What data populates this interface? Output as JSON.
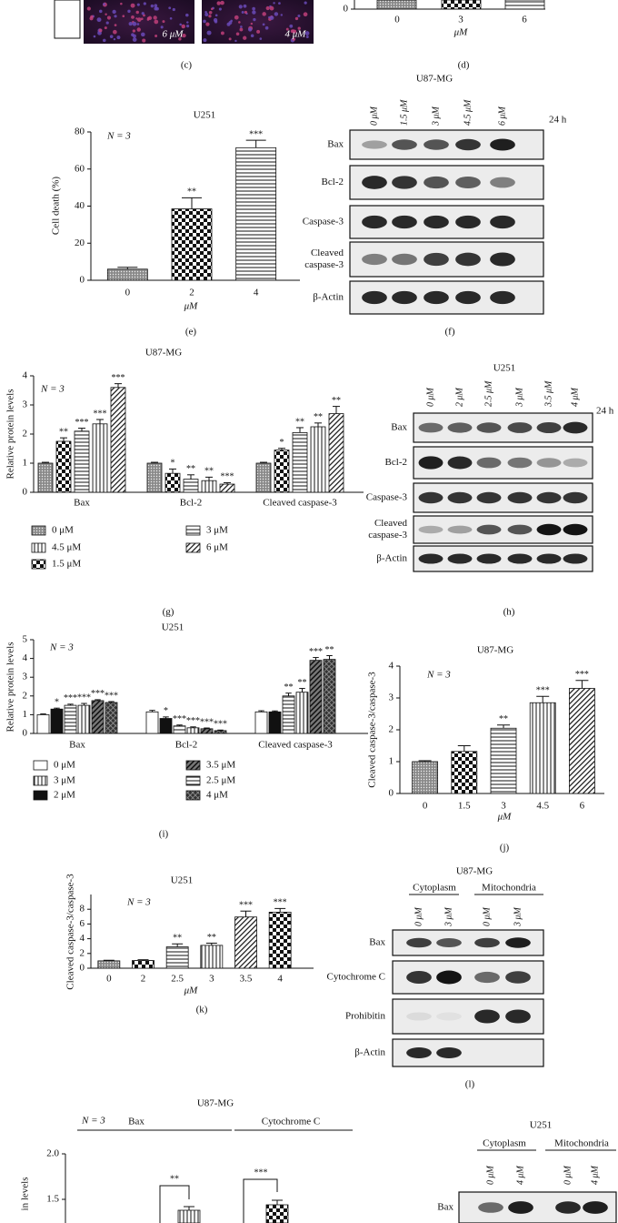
{
  "panel_c": {
    "type": "image",
    "image_labels": [
      "6 μM",
      "4 μM"
    ],
    "label": "(c)"
  },
  "panel_d": {
    "type": "bar",
    "categories": [
      "0",
      "3",
      "6"
    ],
    "xlabel": "μM",
    "yticks": [
      0
    ],
    "label": "(d)"
  },
  "panel_e": {
    "type": "bar",
    "title": "U251",
    "annotation": "N = 3",
    "ylabel": "Cell death (%)",
    "xlabel": "μM",
    "categories": [
      "0",
      "2",
      "4"
    ],
    "values": [
      6,
      38.5,
      71.5
    ],
    "errors": [
      1,
      6,
      4
    ],
    "stars": [
      null,
      "**",
      "***"
    ],
    "fills": [
      "dots",
      "checker",
      "hlines"
    ],
    "ylim": [
      0,
      80
    ],
    "yticks": [
      0,
      20,
      40,
      60,
      80
    ],
    "label": "(e)"
  },
  "panel_f": {
    "type": "blot",
    "title": "U87-MG",
    "lanes": [
      "0 μM",
      "1.5 μM",
      "3 μM",
      "4.5 μM",
      "6 μM"
    ],
    "time": "24 h",
    "rows": [
      [
        "Bax"
      ],
      [
        "Bcl-2"
      ],
      [
        "Caspase-3"
      ],
      [
        "Cleaved",
        "caspase-3"
      ],
      [
        "β-Actin"
      ]
    ],
    "label": "(f)"
  },
  "panel_g": {
    "type": "bar",
    "title": "U87-MG",
    "annotation": "N = 3",
    "ylabel": "Relative protein levels",
    "categories": [
      "Bax",
      "Bcl-2",
      "Cleaved caspase-3"
    ],
    "ylim": [
      0,
      4
    ],
    "yticks": [
      0,
      1,
      2,
      3,
      4
    ],
    "series": [
      {
        "name": "0 μM",
        "fill": "dots",
        "values": [
          1,
          1,
          1
        ],
        "errors": [
          0.03,
          0.03,
          0.03
        ],
        "stars": [
          null,
          null,
          null
        ]
      },
      {
        "name": "1.5 μM",
        "fill": "checker",
        "values": [
          1.75,
          0.65,
          1.45
        ],
        "errors": [
          0.12,
          0.15,
          0.06
        ],
        "stars": [
          "**",
          "*",
          "*"
        ]
      },
      {
        "name": "3 μM",
        "fill": "hlines",
        "values": [
          2.1,
          0.45,
          2.05
        ],
        "errors": [
          0.1,
          0.15,
          0.17
        ],
        "stars": [
          "***",
          "**",
          "**"
        ]
      },
      {
        "name": "4.5 μM",
        "fill": "vlines",
        "values": [
          2.35,
          0.4,
          2.25
        ],
        "errors": [
          0.15,
          0.12,
          0.13
        ],
        "stars": [
          "***",
          "**",
          "**"
        ]
      },
      {
        "name": "6 μM",
        "fill": "diag",
        "values": [
          3.6,
          0.28,
          2.7
        ],
        "errors": [
          0.13,
          0.05,
          0.25
        ],
        "stars": [
          "***",
          "***",
          "**"
        ]
      }
    ],
    "label": "(g)"
  },
  "panel_h": {
    "type": "blot",
    "title": "U251",
    "lanes": [
      "0 μM",
      "2 μM",
      "2.5 μM",
      "3 μM",
      "3.5 μM",
      "4 μM"
    ],
    "time": "24 h",
    "rows": [
      [
        "Bax"
      ],
      [
        "Bcl-2"
      ],
      [
        "Caspase-3"
      ],
      [
        "Cleaved",
        "caspase-3"
      ],
      [
        "β-Actin"
      ]
    ],
    "label": "(h)"
  },
  "panel_i": {
    "type": "bar",
    "title": "U251",
    "annotation": "N = 3",
    "ylabel": "Relative protein levels",
    "categories": [
      "Bax",
      "Bcl-2",
      "Cleaved caspase-3"
    ],
    "ylim": [
      0,
      5
    ],
    "yticks": [
      0,
      1,
      2,
      3,
      4,
      5
    ],
    "series": [
      {
        "name": "0 μM",
        "fill": "white",
        "values": [
          1,
          1.15,
          1.15
        ],
        "errors": [
          0.04,
          0.08,
          0.06
        ],
        "stars": [
          null,
          null,
          null
        ]
      },
      {
        "name": "2 μM",
        "fill": "black",
        "values": [
          1.3,
          0.8,
          1.15
        ],
        "errors": [
          0.05,
          0.08,
          0.05
        ],
        "stars": [
          "*",
          "*",
          null
        ]
      },
      {
        "name": "2.5 μM",
        "fill": "hlines",
        "values": [
          1.5,
          0.4,
          2.0
        ],
        "errors": [
          0.06,
          0.05,
          0.15
        ],
        "stars": [
          "***",
          "***",
          "**"
        ]
      },
      {
        "name": "3 μM",
        "fill": "vlines",
        "values": [
          1.5,
          0.3,
          2.2
        ],
        "errors": [
          0.1,
          0.05,
          0.2
        ],
        "stars": [
          "***",
          "***",
          "**"
        ]
      },
      {
        "name": "3.5 μM",
        "fill": "diagdark",
        "values": [
          1.75,
          0.25,
          3.9
        ],
        "errors": [
          0.05,
          0.04,
          0.15
        ],
        "stars": [
          "***",
          "***",
          "***"
        ]
      },
      {
        "name": "4 μM",
        "fill": "cross",
        "values": [
          1.65,
          0.15,
          3.95
        ],
        "errors": [
          0.05,
          0.03,
          0.2
        ],
        "stars": [
          "***",
          "***",
          "**"
        ]
      }
    ],
    "label": "(i)"
  },
  "panel_j": {
    "type": "bar",
    "title": "U87-MG",
    "annotation": "N = 3",
    "ylabel": "Cleaved caspase-3/caspase-3",
    "xlabel": "μM",
    "categories": [
      "0",
      "1.5",
      "3",
      "4.5",
      "6"
    ],
    "values": [
      1,
      1.32,
      2.05,
      2.85,
      3.3
    ],
    "errors": [
      0.03,
      0.18,
      0.1,
      0.2,
      0.25
    ],
    "stars": [
      null,
      null,
      "**",
      "***",
      "***"
    ],
    "fills": [
      "dots",
      "checker",
      "hlines",
      "vlines",
      "diag"
    ],
    "ylim": [
      0,
      4
    ],
    "yticks": [
      0,
      1,
      2,
      3,
      4
    ],
    "label": "(j)"
  },
  "panel_k": {
    "type": "bar",
    "title": "U251",
    "annotation": "N = 3",
    "ylabel": "Cleaved caspase-3/caspase-3",
    "xlabel": "μM",
    "categories": [
      "0",
      "2",
      "2.5",
      "3",
      "3.5",
      "4"
    ],
    "values": [
      1,
      1.05,
      2.9,
      3.1,
      6.95,
      7.6
    ],
    "errors": [
      0.08,
      0.1,
      0.4,
      0.3,
      0.8,
      0.5
    ],
    "stars": [
      null,
      null,
      "**",
      "**",
      "***",
      "***"
    ],
    "fills": [
      "dots",
      "checker",
      "hlines",
      "vlines",
      "diag",
      "checker"
    ],
    "ylim": [
      0,
      10
    ],
    "yticks": [
      0,
      2,
      4,
      6,
      8
    ],
    "label": "(k)"
  },
  "panel_l": {
    "type": "blot",
    "title": "U87-MG",
    "headers": [
      "Cytoplasm",
      "Mitochondria"
    ],
    "lanes": [
      "0 μM",
      "3 μM",
      "0 μM",
      "3 μM"
    ],
    "rows": [
      [
        "Bax"
      ],
      [
        "Cytochrome C"
      ],
      [
        "Prohibitin"
      ],
      [
        "β-Actin"
      ]
    ],
    "label": "(l)"
  },
  "panel_m": {
    "type": "bar",
    "title": "U87-MG",
    "annotation": "N = 3",
    "ylabel": "in levels",
    "categories": [
      "Bax",
      "Cytochrome C"
    ],
    "values": [
      1.38,
      1.44
    ],
    "errors": [
      0.04,
      0.05
    ],
    "stars": [
      "**",
      "***"
    ],
    "fills": [
      "vlines",
      "checker"
    ],
    "ylim": [
      1.24,
      2.0
    ],
    "yticks": [
      {
        "value": 2,
        "label": "2.0"
      },
      1.5
    ]
  },
  "panel_n": {
    "type": "blot",
    "title": "U251",
    "headers": [
      "Cytoplasm",
      "Mitochondria"
    ],
    "lanes": [
      "0 μM",
      "4 μM",
      "0 μM",
      "4 μM"
    ],
    "rows": [
      [
        "Bax"
      ]
    ]
  }
}
